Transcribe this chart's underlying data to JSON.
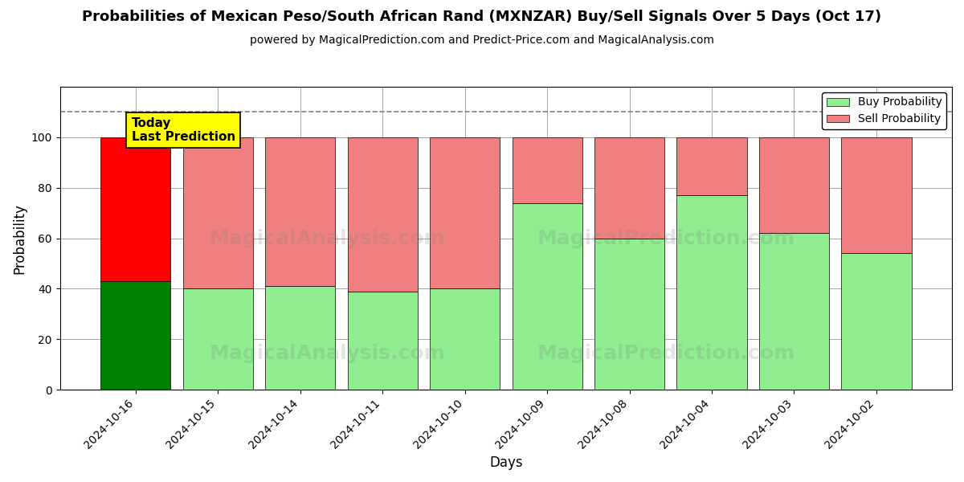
{
  "title": "Probabilities of Mexican Peso/South African Rand (MXNZAR) Buy/Sell Signals Over 5 Days (Oct 17)",
  "subtitle": "powered by MagicalPrediction.com and Predict-Price.com and MagicalAnalysis.com",
  "xlabel": "Days",
  "ylabel": "Probability",
  "categories": [
    "2024-10-16",
    "2024-10-15",
    "2024-10-14",
    "2024-10-11",
    "2024-10-10",
    "2024-10-09",
    "2024-10-08",
    "2024-10-04",
    "2024-10-03",
    "2024-10-02"
  ],
  "buy_values": [
    43,
    40,
    41,
    39,
    40,
    74,
    60,
    77,
    62,
    54
  ],
  "sell_values": [
    57,
    60,
    59,
    61,
    60,
    26,
    40,
    23,
    38,
    46
  ],
  "today_bar_index": 0,
  "today_buy_color": "#008000",
  "today_sell_color": "#ff0000",
  "other_buy_color": "#90ee90",
  "other_sell_color": "#f08080",
  "annotation_text": "Today\nLast Prediction",
  "annotation_bg": "#ffff00",
  "legend_buy_label": "Buy Probability",
  "legend_sell_label": "Sell Probability",
  "ylim": [
    0,
    120
  ],
  "yticks": [
    0,
    20,
    40,
    60,
    80,
    100
  ],
  "dashed_line_y": 110,
  "figsize": [
    12.0,
    6.0
  ],
  "dpi": 100,
  "bar_width": 0.85
}
